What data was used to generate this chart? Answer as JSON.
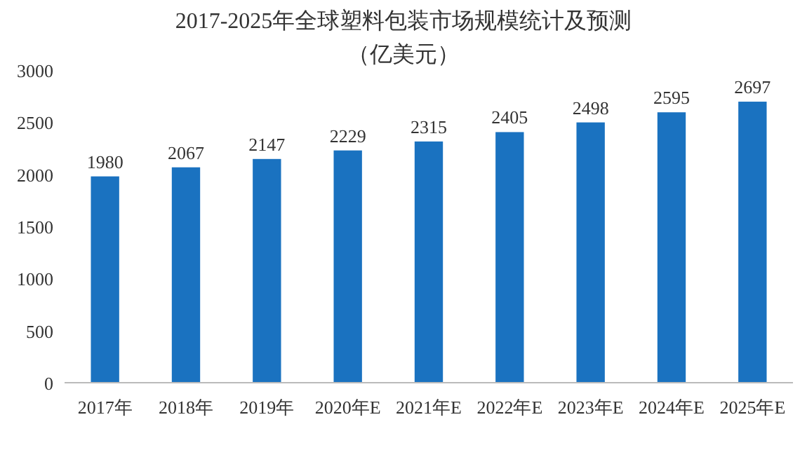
{
  "chart_data": {
    "type": "bar",
    "title": "2017-2025年全球塑料包装市场规模统计及预测",
    "subtitle": "（亿美元）",
    "categories": [
      "2017年",
      "2018年",
      "2019年",
      "2020年E",
      "2021年E",
      "2022年E",
      "2023年E",
      "2024年E",
      "2025年E"
    ],
    "values": [
      1980,
      2067,
      2147,
      2229,
      2315,
      2405,
      2498,
      2595,
      2697
    ],
    "color": "#1a72c0",
    "ylim": [
      0,
      3000
    ],
    "yticks": [
      0,
      500,
      1000,
      1500,
      2000,
      2500,
      3000
    ],
    "data_labels": true
  }
}
